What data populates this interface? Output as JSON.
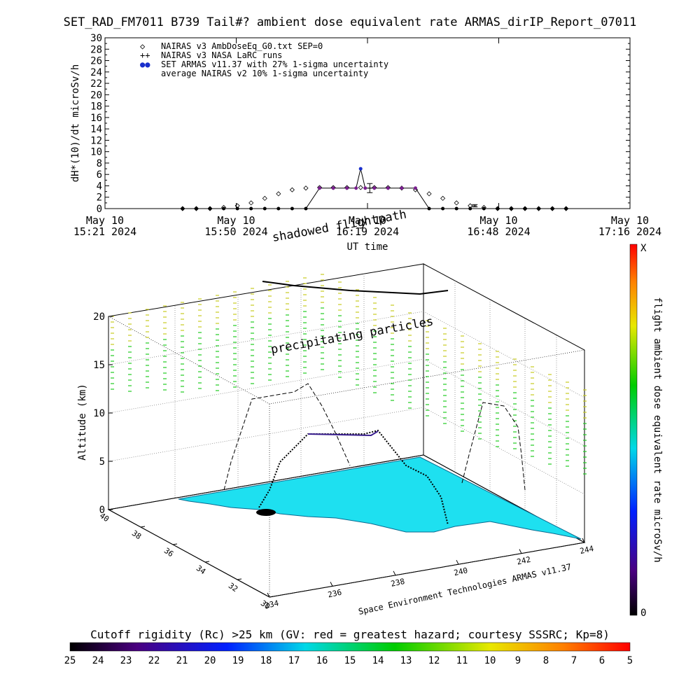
{
  "title": "SET_RAD_FM7011  B739 Tail#? ambient dose equivalent rate ARMAS_dirIP_Report_07011",
  "chart_data": [
    {
      "type": "scatter",
      "ylabel": "dH*(10)/dt microSv/h",
      "xlabel": "UT time",
      "ylim": [
        0,
        30
      ],
      "yticks": [
        0,
        2,
        4,
        6,
        8,
        10,
        12,
        14,
        16,
        18,
        20,
        22,
        24,
        26,
        28,
        30
      ],
      "xticks": [
        {
          "l1": "May 10",
          "l2": "15:21 2024"
        },
        {
          "l1": "May 10",
          "l2": "15:50 2024"
        },
        {
          "l1": "May 10",
          "l2": "16:19 2024"
        },
        {
          "l1": "May 10",
          "l2": "16:48 2024"
        },
        {
          "l1": "May 10",
          "l2": "17:16 2024"
        }
      ],
      "xlim_minutes": [
        0,
        115
      ],
      "legend": [
        {
          "symbol": "◇",
          "text": "NAIRAS v3 AmbDoseEq_G0.txt SEP=0"
        },
        {
          "symbol": "++",
          "text": "NAIRAS v3 NASA LaRC runs"
        },
        {
          "symbol": "●●",
          "text": "SET ARMAS v11.37 with 27% 1-sigma uncertainty"
        },
        {
          "symbol": "",
          "text": "average NAIRAS v2 10% 1-sigma uncertainty"
        }
      ],
      "series": [
        {
          "name": "NAIRAS v3 AmbDoseEq_G0.txt SEP=0",
          "x": [
            17,
            20,
            23,
            26,
            29,
            32,
            35,
            38,
            41,
            44,
            47,
            50,
            53,
            56,
            59,
            62,
            65,
            68,
            71,
            74,
            77,
            80,
            83,
            86,
            89,
            92,
            95,
            98,
            101
          ],
          "y": [
            0,
            0,
            0,
            0.2,
            0.5,
            1,
            1.8,
            2.6,
            3.3,
            3.6,
            3.7,
            3.7,
            3.7,
            3.7,
            3.7,
            3.7,
            3.6,
            3.3,
            2.6,
            1.8,
            1,
            0.5,
            0.2,
            0,
            0,
            0,
            0,
            0,
            0
          ]
        },
        {
          "name": "SET ARMAS v11.37 with 27% 1-sigma uncertainty",
          "x": [
            17,
            20,
            23,
            26,
            29,
            32,
            35,
            38,
            41,
            44,
            47,
            50,
            53,
            55,
            56,
            57,
            59,
            62,
            65,
            68,
            71,
            74,
            77,
            80,
            83,
            86,
            89,
            92,
            95,
            98,
            101
          ],
          "y": [
            0,
            0,
            0,
            0,
            0,
            0,
            0,
            0,
            0,
            0,
            3.6,
            3.6,
            3.6,
            3.6,
            7,
            3.6,
            3.6,
            3.6,
            3.6,
            3.6,
            0,
            0,
            0,
            0,
            0,
            0,
            0,
            0,
            0,
            0,
            0
          ]
        },
        {
          "name": "NAIRAS v3 NASA LaRC runs",
          "x": [
            58,
            81
          ],
          "y": [
            3.6,
            0.5
          ],
          "err": [
            0.8,
            0.2
          ]
        }
      ]
    },
    {
      "type": "3d-trajectory",
      "zlabel": "Altitude (km)",
      "zticks": [
        0,
        5,
        10,
        15,
        20
      ],
      "lat_ticks": [
        30,
        32,
        34,
        36,
        38,
        40
      ],
      "lon_ticks": [
        234,
        236,
        238,
        240,
        242,
        244
      ],
      "annotations": [
        "shadowed flightpath",
        "precipitating particles",
        "Space Environment Technologies ARMAS v11.37"
      ],
      "colorbar": {
        "label": "flight ambient dose equivalent rate microSv/h",
        "top": "X",
        "bottom": "0"
      }
    },
    {
      "type": "colorbar",
      "label": "Cutoff rigidity (Rc) >25 km (GV: red = greatest hazard; courtesy SSSRC; Kp=8)",
      "ticks": [
        25,
        24,
        23,
        22,
        21,
        20,
        19,
        18,
        17,
        16,
        15,
        14,
        13,
        12,
        11,
        10,
        9,
        8,
        7,
        6,
        5
      ]
    }
  ],
  "colors": {
    "accent": "#3a1f8f",
    "surface": "#1ee0f0",
    "particles_green": "#22cc22",
    "particles_yellow": "#cccc22"
  }
}
